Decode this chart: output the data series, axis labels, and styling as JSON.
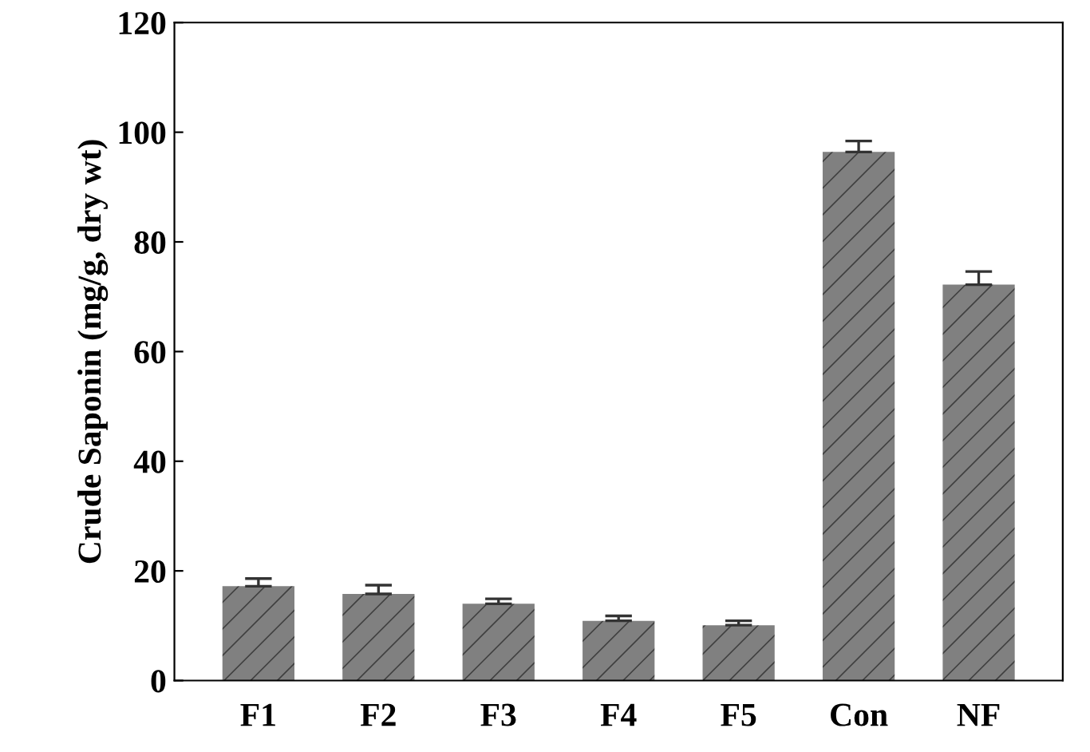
{
  "chart_data": {
    "type": "bar",
    "ylabel": "Crude Saponin (mg/g, dry wt)",
    "categories": [
      "F1",
      "F2",
      "F3",
      "F4",
      "F5",
      "Con",
      "NF"
    ],
    "values": [
      17.2,
      15.8,
      14.0,
      10.9,
      10.1,
      96.4,
      72.2
    ],
    "errors": [
      1.4,
      1.6,
      0.9,
      0.9,
      0.8,
      2.0,
      2.4
    ],
    "color": "#808080",
    "ylim": [
      0,
      120
    ],
    "yticks": [
      0,
      20,
      40,
      60,
      80,
      100,
      120
    ],
    "grid": false,
    "legend": false
  }
}
